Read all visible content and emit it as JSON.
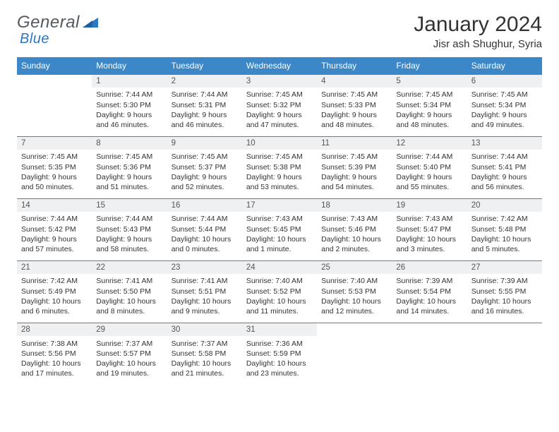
{
  "brand": {
    "word1": "General",
    "word2": "Blue"
  },
  "title": "January 2024",
  "location": "Jisr ash Shughur, Syria",
  "colors": {
    "header_bg": "#3b87c8",
    "header_text": "#ffffff",
    "stripe_bg": "#eef0f2",
    "rule": "#3b87c8",
    "body_text": "#333333",
    "logo_gray": "#555a5f",
    "logo_blue": "#2b78c5",
    "page_bg": "#ffffff"
  },
  "typography": {
    "title_fontsize": 30,
    "location_fontsize": 15,
    "dayhead_fontsize": 12,
    "daynum_fontsize": 11.5,
    "detail_fontsize": 10.5
  },
  "calendar": {
    "type": "table",
    "day_headers": [
      "Sunday",
      "Monday",
      "Tuesday",
      "Wednesday",
      "Thursday",
      "Friday",
      "Saturday"
    ],
    "weeks": [
      [
        null,
        {
          "n": "1",
          "sunrise": "7:44 AM",
          "sunset": "5:30 PM",
          "daylight": "9 hours and 46 minutes."
        },
        {
          "n": "2",
          "sunrise": "7:44 AM",
          "sunset": "5:31 PM",
          "daylight": "9 hours and 46 minutes."
        },
        {
          "n": "3",
          "sunrise": "7:45 AM",
          "sunset": "5:32 PM",
          "daylight": "9 hours and 47 minutes."
        },
        {
          "n": "4",
          "sunrise": "7:45 AM",
          "sunset": "5:33 PM",
          "daylight": "9 hours and 48 minutes."
        },
        {
          "n": "5",
          "sunrise": "7:45 AM",
          "sunset": "5:34 PM",
          "daylight": "9 hours and 48 minutes."
        },
        {
          "n": "6",
          "sunrise": "7:45 AM",
          "sunset": "5:34 PM",
          "daylight": "9 hours and 49 minutes."
        }
      ],
      [
        {
          "n": "7",
          "sunrise": "7:45 AM",
          "sunset": "5:35 PM",
          "daylight": "9 hours and 50 minutes."
        },
        {
          "n": "8",
          "sunrise": "7:45 AM",
          "sunset": "5:36 PM",
          "daylight": "9 hours and 51 minutes."
        },
        {
          "n": "9",
          "sunrise": "7:45 AM",
          "sunset": "5:37 PM",
          "daylight": "9 hours and 52 minutes."
        },
        {
          "n": "10",
          "sunrise": "7:45 AM",
          "sunset": "5:38 PM",
          "daylight": "9 hours and 53 minutes."
        },
        {
          "n": "11",
          "sunrise": "7:45 AM",
          "sunset": "5:39 PM",
          "daylight": "9 hours and 54 minutes."
        },
        {
          "n": "12",
          "sunrise": "7:44 AM",
          "sunset": "5:40 PM",
          "daylight": "9 hours and 55 minutes."
        },
        {
          "n": "13",
          "sunrise": "7:44 AM",
          "sunset": "5:41 PM",
          "daylight": "9 hours and 56 minutes."
        }
      ],
      [
        {
          "n": "14",
          "sunrise": "7:44 AM",
          "sunset": "5:42 PM",
          "daylight": "9 hours and 57 minutes."
        },
        {
          "n": "15",
          "sunrise": "7:44 AM",
          "sunset": "5:43 PM",
          "daylight": "9 hours and 58 minutes."
        },
        {
          "n": "16",
          "sunrise": "7:44 AM",
          "sunset": "5:44 PM",
          "daylight": "10 hours and 0 minutes."
        },
        {
          "n": "17",
          "sunrise": "7:43 AM",
          "sunset": "5:45 PM",
          "daylight": "10 hours and 1 minute."
        },
        {
          "n": "18",
          "sunrise": "7:43 AM",
          "sunset": "5:46 PM",
          "daylight": "10 hours and 2 minutes."
        },
        {
          "n": "19",
          "sunrise": "7:43 AM",
          "sunset": "5:47 PM",
          "daylight": "10 hours and 3 minutes."
        },
        {
          "n": "20",
          "sunrise": "7:42 AM",
          "sunset": "5:48 PM",
          "daylight": "10 hours and 5 minutes."
        }
      ],
      [
        {
          "n": "21",
          "sunrise": "7:42 AM",
          "sunset": "5:49 PM",
          "daylight": "10 hours and 6 minutes."
        },
        {
          "n": "22",
          "sunrise": "7:41 AM",
          "sunset": "5:50 PM",
          "daylight": "10 hours and 8 minutes."
        },
        {
          "n": "23",
          "sunrise": "7:41 AM",
          "sunset": "5:51 PM",
          "daylight": "10 hours and 9 minutes."
        },
        {
          "n": "24",
          "sunrise": "7:40 AM",
          "sunset": "5:52 PM",
          "daylight": "10 hours and 11 minutes."
        },
        {
          "n": "25",
          "sunrise": "7:40 AM",
          "sunset": "5:53 PM",
          "daylight": "10 hours and 12 minutes."
        },
        {
          "n": "26",
          "sunrise": "7:39 AM",
          "sunset": "5:54 PM",
          "daylight": "10 hours and 14 minutes."
        },
        {
          "n": "27",
          "sunrise": "7:39 AM",
          "sunset": "5:55 PM",
          "daylight": "10 hours and 16 minutes."
        }
      ],
      [
        {
          "n": "28",
          "sunrise": "7:38 AM",
          "sunset": "5:56 PM",
          "daylight": "10 hours and 17 minutes."
        },
        {
          "n": "29",
          "sunrise": "7:37 AM",
          "sunset": "5:57 PM",
          "daylight": "10 hours and 19 minutes."
        },
        {
          "n": "30",
          "sunrise": "7:37 AM",
          "sunset": "5:58 PM",
          "daylight": "10 hours and 21 minutes."
        },
        {
          "n": "31",
          "sunrise": "7:36 AM",
          "sunset": "5:59 PM",
          "daylight": "10 hours and 23 minutes."
        },
        null,
        null,
        null
      ]
    ],
    "labels": {
      "sunrise": "Sunrise:",
      "sunset": "Sunset:",
      "daylight": "Daylight:"
    }
  }
}
